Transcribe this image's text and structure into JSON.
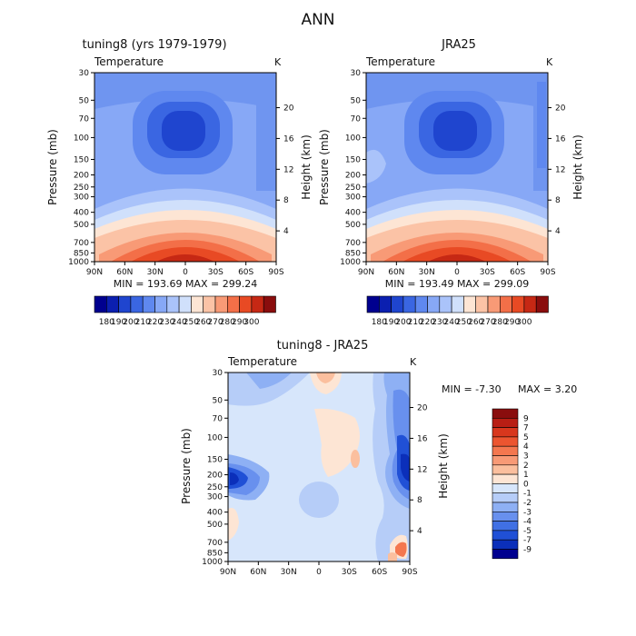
{
  "page_title": "ANN",
  "chart_data": [
    {
      "type": "heatmap",
      "title": "tuning8 (yrs 1979-1979)",
      "subtitle": "Temperature",
      "units": "K",
      "ylabel": "Pressure (mb)",
      "ylabel_right": "Height (km)",
      "x_ticks": [
        "90N",
        "60N",
        "30N",
        "0",
        "30S",
        "60S",
        "90S"
      ],
      "y_ticks": [
        "30",
        "50",
        "70",
        "100",
        "150",
        "200",
        "250",
        "300",
        "400",
        "500",
        "700",
        "850",
        "1000"
      ],
      "y_ticks_right": [
        "20",
        "16",
        "12",
        "8",
        "4"
      ],
      "stats": "MIN = 193.69   MAX = 299.24",
      "colorbar": {
        "labels": [
          "180",
          "190",
          "200",
          "210",
          "220",
          "230",
          "240",
          "250",
          "260",
          "270",
          "280",
          "290",
          "300"
        ],
        "colors": [
          "#00008f",
          "#0b1fb0",
          "#1f45cf",
          "#3a66e2",
          "#5f88ef",
          "#87a8f6",
          "#aac3fa",
          "#d0e0fb",
          "#fde5d4",
          "#fbc3a6",
          "#f89a76",
          "#f36f48",
          "#e84a24",
          "#c62814",
          "#8a0d0d"
        ]
      }
    },
    {
      "type": "heatmap",
      "title": "JRA25",
      "subtitle": "Temperature",
      "units": "K",
      "ylabel": "Pressure (mb)",
      "ylabel_right": "Height (km)",
      "x_ticks": [
        "90N",
        "60N",
        "30N",
        "0",
        "30S",
        "60S",
        "90S"
      ],
      "y_ticks": [
        "30",
        "50",
        "70",
        "100",
        "150",
        "200",
        "250",
        "300",
        "400",
        "500",
        "700",
        "850",
        "1000"
      ],
      "y_ticks_right": [
        "20",
        "16",
        "12",
        "8",
        "4"
      ],
      "stats": "MIN = 193.49   MAX = 299.09",
      "colorbar": {
        "labels": [
          "180",
          "190",
          "200",
          "210",
          "220",
          "230",
          "240",
          "250",
          "260",
          "270",
          "280",
          "290",
          "300"
        ],
        "colors": [
          "#00008f",
          "#0b1fb0",
          "#1f45cf",
          "#3a66e2",
          "#5f88ef",
          "#87a8f6",
          "#aac3fa",
          "#d0e0fb",
          "#fde5d4",
          "#fbc3a6",
          "#f89a76",
          "#f36f48",
          "#e84a24",
          "#c62814",
          "#8a0d0d"
        ]
      }
    },
    {
      "type": "heatmap",
      "title": "tuning8 - JRA25",
      "subtitle": "Temperature",
      "units": "K",
      "ylabel": "Pressure (mb)",
      "ylabel_right": "Height (km)",
      "x_ticks": [
        "90N",
        "60N",
        "30N",
        "0",
        "30S",
        "60S",
        "90S"
      ],
      "y_ticks": [
        "30",
        "50",
        "70",
        "100",
        "150",
        "200",
        "250",
        "300",
        "400",
        "500",
        "700",
        "850",
        "1000"
      ],
      "y_ticks_right": [
        "20",
        "16",
        "12",
        "8",
        "4"
      ],
      "stats_min": "MIN =  -7.30",
      "stats_max": "MAX =   3.20",
      "colorbar": {
        "labels": [
          "9",
          "7",
          "5",
          "4",
          "3",
          "2",
          "1",
          "0",
          "-1",
          "-2",
          "-3",
          "-4",
          "-5",
          "-7",
          "-9"
        ],
        "colors": [
          "#8a0d0d",
          "#b81e14",
          "#d8371d",
          "#ec5530",
          "#f4774f",
          "#f89a76",
          "#fbbf9e",
          "#fde5d4",
          "#d7e6fb",
          "#b6cdf8",
          "#8eb0f4",
          "#6890ee",
          "#4070e4",
          "#2050d6",
          "#0b2fba",
          "#00008f"
        ]
      }
    }
  ]
}
